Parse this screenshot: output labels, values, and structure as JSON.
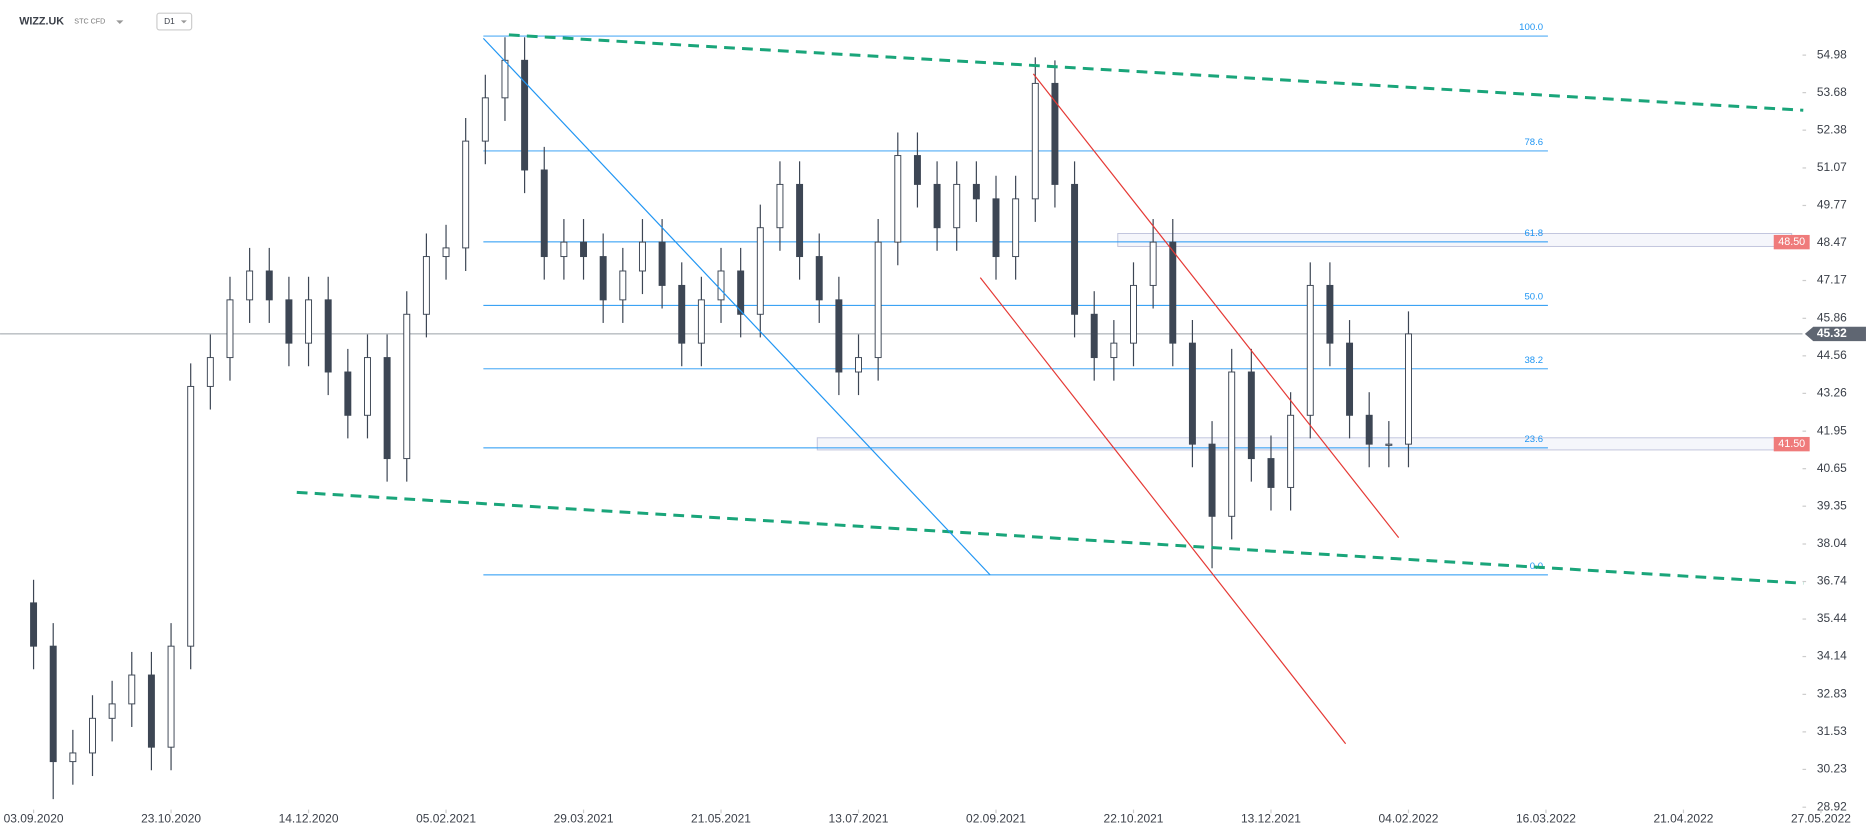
{
  "header": {
    "symbol": "WIZZ.UK",
    "instrument": "STC CFD",
    "timeframe": "D1"
  },
  "chart_data": {
    "type": "candlestick",
    "open": [
      36.0,
      34.5,
      30.5,
      30.8,
      32.0,
      32.5,
      33.5,
      31.0,
      34.5,
      43.5,
      44.5,
      46.5,
      47.5,
      46.5,
      45.0,
      46.5,
      44.0,
      42.5,
      44.5,
      41.0,
      46.0,
      48.0,
      48.3,
      52.0,
      53.5,
      54.8,
      51.0,
      48.0,
      48.5,
      48.0,
      46.5,
      47.5,
      48.5,
      47.0,
      45.0,
      46.5,
      47.5,
      46.0,
      49.0,
      50.5,
      48.0,
      46.5,
      44.0,
      44.5,
      48.5,
      51.5,
      50.5,
      49.0,
      50.5,
      50.0,
      48.0,
      50.0,
      54.0,
      50.5,
      46.0,
      44.5,
      45.0,
      47.0,
      48.5,
      45.0,
      41.5,
      39.0,
      44.0,
      41.0,
      40.0,
      42.5,
      47.0,
      45.0,
      42.5,
      41.5,
      41.5
    ],
    "high": [
      36.8,
      35.3,
      31.6,
      32.8,
      33.3,
      34.3,
      34.3,
      35.3,
      44.3,
      45.3,
      47.3,
      48.3,
      48.3,
      47.3,
      47.3,
      47.3,
      44.8,
      45.3,
      45.3,
      46.8,
      48.8,
      49.1,
      52.8,
      54.3,
      55.6,
      55.6,
      51.8,
      49.3,
      49.3,
      48.8,
      48.3,
      49.3,
      49.3,
      47.8,
      47.3,
      48.3,
      48.3,
      49.8,
      51.3,
      51.3,
      48.8,
      47.3,
      45.3,
      49.3,
      52.3,
      52.3,
      51.3,
      51.3,
      51.3,
      50.8,
      50.8,
      54.9,
      54.8,
      51.3,
      46.8,
      45.8,
      47.8,
      49.3,
      49.3,
      45.8,
      42.3,
      44.8,
      44.8,
      41.8,
      43.3,
      47.8,
      47.8,
      45.8,
      43.3,
      42.3,
      46.1
    ],
    "low": [
      33.7,
      29.2,
      29.7,
      30.0,
      31.2,
      31.7,
      30.2,
      30.2,
      33.7,
      42.7,
      43.7,
      45.7,
      45.7,
      44.2,
      44.2,
      43.2,
      41.7,
      41.7,
      40.2,
      40.2,
      45.2,
      47.2,
      47.5,
      51.2,
      52.7,
      50.2,
      47.2,
      47.2,
      47.2,
      45.7,
      45.7,
      46.7,
      46.2,
      44.2,
      44.2,
      45.7,
      45.2,
      45.2,
      48.2,
      47.2,
      45.7,
      43.2,
      43.2,
      43.7,
      47.7,
      49.7,
      48.2,
      48.2,
      49.2,
      47.2,
      47.2,
      49.2,
      49.7,
      45.2,
      43.7,
      43.7,
      44.2,
      46.2,
      44.2,
      40.7,
      37.2,
      38.2,
      40.2,
      39.2,
      39.2,
      41.7,
      44.2,
      41.7,
      40.7,
      40.7,
      40.7
    ],
    "close": [
      34.5,
      30.5,
      30.8,
      32.0,
      32.5,
      33.5,
      31.0,
      34.5,
      43.5,
      44.5,
      46.5,
      47.5,
      46.5,
      45.0,
      46.5,
      44.0,
      42.5,
      44.5,
      41.0,
      46.0,
      48.0,
      48.3,
      52.0,
      53.5,
      54.8,
      51.0,
      48.0,
      48.5,
      48.0,
      46.5,
      47.5,
      48.5,
      47.0,
      45.0,
      46.5,
      47.5,
      46.0,
      49.0,
      50.5,
      48.0,
      46.5,
      44.0,
      44.5,
      48.5,
      51.5,
      50.5,
      49.0,
      50.5,
      50.0,
      48.0,
      50.0,
      54.0,
      50.5,
      46.0,
      44.5,
      45.0,
      47.0,
      48.5,
      45.0,
      41.5,
      39.0,
      44.0,
      41.0,
      40.0,
      42.5,
      47.0,
      45.0,
      42.5,
      41.5,
      41.5,
      45.32
    ],
    "up_color": "#ffffff",
    "down_color": "#3d4654",
    "wick_color": "#3d4654",
    "xlim": [
      -1.707,
      90.06
    ],
    "xticks": [
      {
        "value": 0,
        "label": "03.09.2020"
      },
      {
        "value": 7,
        "label": "23.10.2020"
      },
      {
        "value": 14,
        "label": "14.12.2020"
      },
      {
        "value": 21,
        "label": "05.02.2021"
      },
      {
        "value": 28,
        "label": "29.03.2021"
      },
      {
        "value": 35,
        "label": "21.05.2021"
      },
      {
        "value": 42,
        "label": "13.07.2021"
      },
      {
        "value": 49,
        "label": "02.09.2021"
      },
      {
        "value": 56,
        "label": "22.10.2021"
      },
      {
        "value": 63,
        "label": "13.12.2021"
      },
      {
        "value": 70,
        "label": "04.02.2022"
      },
      {
        "value": 77,
        "label": "16.03.2022"
      },
      {
        "value": 84,
        "label": "21.04.2022"
      },
      {
        "value": 91,
        "label": "27.05.2022"
      }
    ],
    "ylim": [
      28.92,
      56.89
    ],
    "yticks": [
      54.98,
      53.68,
      52.38,
      51.07,
      49.77,
      48.47,
      47.17,
      45.86,
      44.56,
      43.26,
      41.95,
      40.65,
      39.35,
      38.04,
      36.74,
      35.44,
      34.14,
      32.83,
      31.53,
      30.23,
      28.92
    ],
    "last_price": 45.32,
    "last_price_color": "#5f6672",
    "price_labels": [
      {
        "value": 48.5,
        "label": "48.50"
      },
      {
        "value": 41.5,
        "label": "41.50"
      }
    ],
    "price_label_color": "#ef7b7b",
    "zones": [
      {
        "from": 48.35,
        "to": 48.8,
        "start": 55.2
      },
      {
        "from": 41.3,
        "to": 41.72,
        "start": 39.9
      }
    ],
    "fib_color": "#2196f3",
    "fib_start": 22.9,
    "fib_end": 77.1,
    "fib_levels": [
      {
        "label": "100.0",
        "price": 55.64
      },
      {
        "label": "78.6",
        "price": 51.66
      },
      {
        "label": "61.8",
        "price": 48.51
      },
      {
        "label": "50.0",
        "price": 46.31
      },
      {
        "label": "38.2",
        "price": 44.11
      },
      {
        "label": "23.6",
        "price": 41.37
      },
      {
        "label": "0.0",
        "price": 36.97
      }
    ],
    "trendlines": [
      {
        "color": "#1aa57a",
        "dashed": true,
        "x": [
          24.2,
          90.1
        ],
        "y": [
          55.68,
          53.07
        ]
      },
      {
        "color": "#1aa57a",
        "dashed": true,
        "x": [
          13.4,
          90.1
        ],
        "y": [
          39.83,
          36.68
        ]
      },
      {
        "color": "#2196f3",
        "dashed": false,
        "x": [
          22.9,
          48.7
        ],
        "y": [
          55.56,
          36.97
        ]
      },
      {
        "color": "#e53935",
        "dashed": false,
        "x": [
          50.9,
          69.5
        ],
        "y": [
          54.33,
          38.26
        ]
      },
      {
        "color": "#e53935",
        "dashed": false,
        "x": [
          48.2,
          66.8
        ],
        "y": [
          47.27,
          31.12
        ]
      }
    ]
  }
}
